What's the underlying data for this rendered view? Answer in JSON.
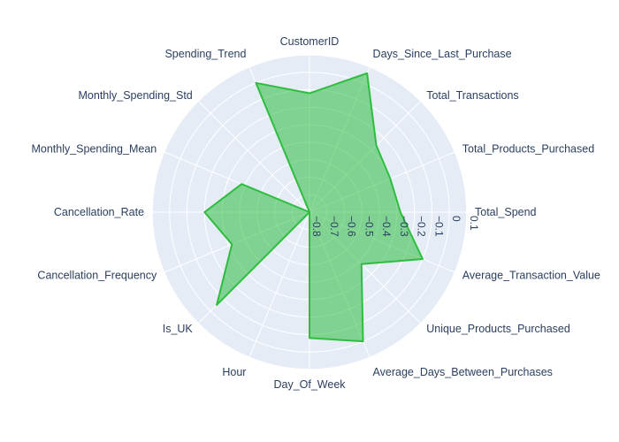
{
  "chart_data": {
    "type": "radar",
    "title": "",
    "categories": [
      "Total_Spend",
      "Total_Products_Purchased",
      "Total_Transactions",
      "Days_Since_Last_Purchase",
      "CustomerID",
      "Spending_Trend",
      "Monthly_Spending_Std",
      "Monthly_Spending_Mean",
      "Cancellation_Rate",
      "Cancellation_Frequency",
      "Is_UK",
      "Hour",
      "Day_Of_Week",
      "Average_Days_Between_Purchases",
      "Unique_Products_Purchased",
      "Average_Transaction_Value"
    ],
    "series": [
      {
        "values": [
          -0.28,
          -0.3,
          -0.26,
          0.06,
          -0.12,
          0.0,
          -0.8,
          -0.38,
          -0.2,
          -0.32,
          -0.05,
          -0.8,
          -0.08,
          0.0,
          -0.38,
          -0.1
        ],
        "line_color": "#2ebd3f",
        "fill_color": "rgba(46,189,63,0.55)"
      }
    ],
    "radial_axis": {
      "range": [
        -0.8,
        0.1
      ],
      "tick_values": [
        0.1,
        0,
        -0.1,
        -0.2,
        -0.3,
        -0.4,
        -0.5,
        -0.6,
        -0.7,
        -0.8
      ],
      "tick_labels": [
        "0.1",
        "0",
        "−0.1",
        "−0.2",
        "−0.3",
        "−0.4",
        "−0.5",
        "−0.6",
        "−0.7",
        "−0.8"
      ]
    },
    "polar_background": "#e5ecf6",
    "grid_color": "#ffffff",
    "grid": true,
    "legend": false
  }
}
